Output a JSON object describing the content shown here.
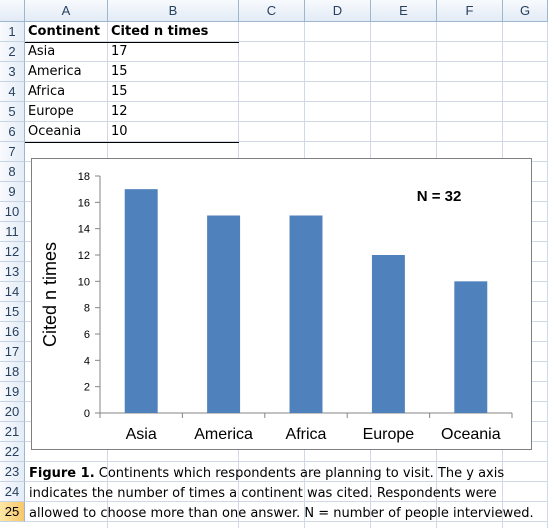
{
  "columns": [
    "A",
    "B",
    "C",
    "D",
    "E",
    "F",
    "G"
  ],
  "rows": [
    "1",
    "2",
    "3",
    "4",
    "5",
    "6",
    "7",
    "8",
    "9",
    "10",
    "11",
    "12",
    "13",
    "14",
    "15",
    "16",
    "17",
    "18",
    "19",
    "20",
    "21",
    "22",
    "23",
    "24",
    "25"
  ],
  "selected_row": "25",
  "table": {
    "headers": [
      "Continent",
      "Cited n times"
    ],
    "rows": [
      [
        "Asia",
        "17"
      ],
      [
        "America",
        "15"
      ],
      [
        "Africa",
        "15"
      ],
      [
        "Europe",
        "12"
      ],
      [
        "Oceania",
        "10"
      ]
    ]
  },
  "chart_data": {
    "type": "bar",
    "categories": [
      "Asia",
      "America",
      "Africa",
      "Europe",
      "Oceania"
    ],
    "values": [
      17,
      15,
      15,
      12,
      10
    ],
    "ylabel": "Cited n times",
    "xlabel": "",
    "ylim": [
      0,
      18
    ],
    "yticks": [
      0,
      2,
      4,
      6,
      8,
      10,
      12,
      14,
      16,
      18
    ],
    "annotation": "N = 32",
    "bar_color": "#4f81bd",
    "grid": false
  },
  "caption": {
    "label": "Figure 1.",
    "text": " Continents which respondents are planning to visit. The y axis indicates the number of times a continent was cited. Respondents were allowed to choose more than one answer. N = number of people interviewed."
  }
}
